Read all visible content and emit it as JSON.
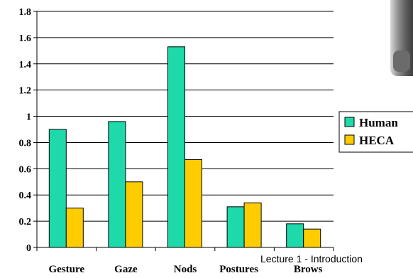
{
  "chart_data": {
    "type": "bar",
    "categories": [
      "Gesture",
      "Gaze",
      "Nods",
      "Postures",
      "Brows"
    ],
    "series": [
      {
        "name": "Human",
        "values": [
          0.9,
          0.96,
          1.53,
          0.31,
          0.18
        ],
        "color": "#1ed9a9"
      },
      {
        "name": "HECA",
        "values": [
          0.3,
          0.5,
          0.67,
          0.34,
          0.14
        ],
        "color": "#ffcc00"
      }
    ],
    "yticks": [
      "0",
      "0.2",
      "0.4",
      "0.6",
      "0.8",
      "1",
      "1.2",
      "1.4",
      "1.6",
      "1.8"
    ],
    "ylim": [
      0,
      1.8
    ],
    "grid": true,
    "legend": "right"
  },
  "footer": {
    "text": "Lecture 1 - Introduction"
  },
  "photo": {
    "icon": "person-photo"
  }
}
